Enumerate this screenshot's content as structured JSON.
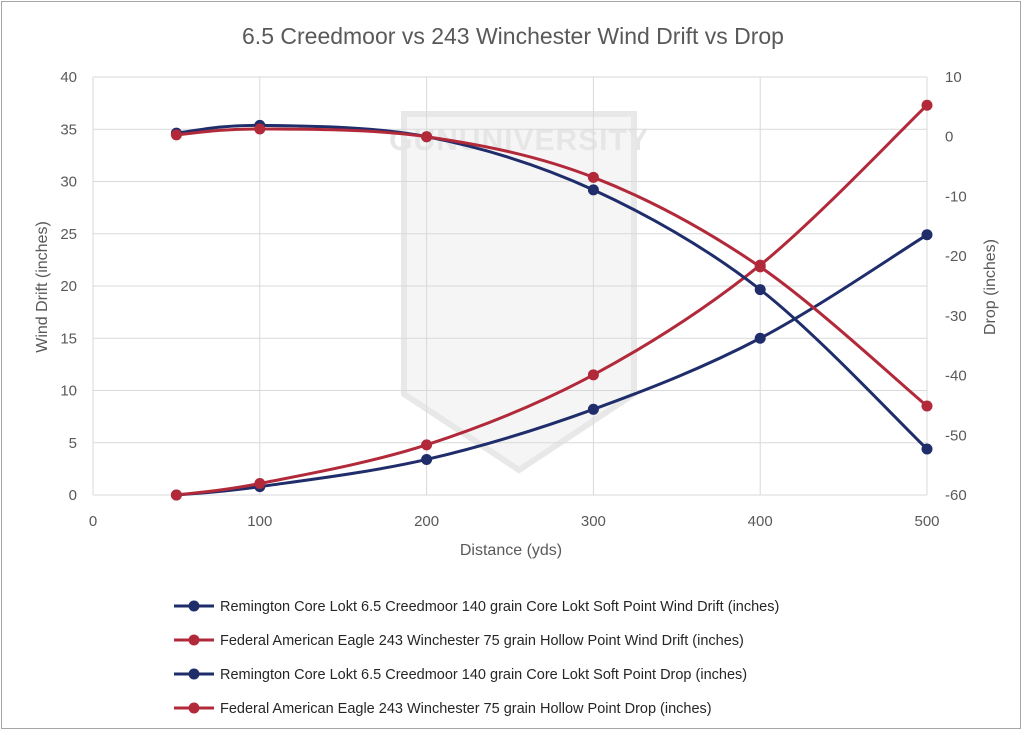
{
  "chart_data": {
    "type": "line",
    "title": "6.5 Creedmoor vs 243 Winchester Wind Drift vs Drop",
    "xlabel": "Distance (yds)",
    "ylabel": "Wind Drift (inches)",
    "y2label": "Drop (inches)",
    "xlim": [
      0,
      500
    ],
    "ylim": [
      0,
      40
    ],
    "y2lim": [
      -60,
      10
    ],
    "x_ticks": [
      0,
      100,
      200,
      300,
      400,
      500
    ],
    "y_ticks": [
      0,
      5,
      10,
      15,
      20,
      25,
      30,
      35,
      40
    ],
    "y2_ticks": [
      -60,
      -50,
      -40,
      -30,
      -20,
      -10,
      0,
      10
    ],
    "grid": true,
    "legend_position": "bottom",
    "watermark": "GUNUNIVERSITY",
    "series": [
      {
        "name": "Remington Core Lokt 6.5 Creedmoor 140 grain Core Lokt Soft Point Wind Drift (inches)",
        "axis": "left",
        "color": "#1f2d6b",
        "x": [
          50,
          100,
          200,
          300,
          400,
          500
        ],
        "y": [
          0,
          0.8,
          3.4,
          8.2,
          15.0,
          24.9
        ]
      },
      {
        "name": "Federal American Eagle 243 Winchester 75 grain Hollow Point Wind Drift (inches)",
        "axis": "left",
        "color": "#b22a3a",
        "x": [
          50,
          100,
          200,
          300,
          400,
          500
        ],
        "y": [
          0,
          1.1,
          4.8,
          11.5,
          22.0,
          37.3
        ]
      },
      {
        "name": "Remington Core Lokt 6.5 Creedmoor 140 grain Core Lokt Soft Point Drop (inches)",
        "axis": "right",
        "color": "#1f2d6b",
        "x": [
          50,
          100,
          200,
          300,
          400,
          500
        ],
        "y": [
          0.6,
          1.9,
          0,
          -8.9,
          -25.6,
          -52.3
        ]
      },
      {
        "name": "Federal American Eagle 243 Winchester 75 grain Hollow Point Drop (inches)",
        "axis": "right",
        "color": "#b22a3a",
        "x": [
          50,
          100,
          200,
          300,
          400,
          500
        ],
        "y": [
          0.3,
          1.3,
          0,
          -6.8,
          -21.8,
          -45.1
        ]
      }
    ]
  }
}
